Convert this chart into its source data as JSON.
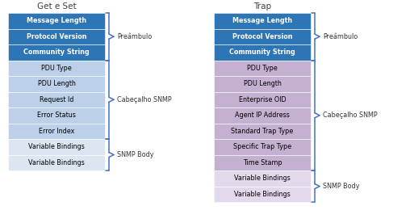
{
  "title_left": "Get e Set",
  "title_right": "Trap",
  "left_rows": [
    {
      "label": "Message Length",
      "color": "#2E75B6",
      "text_color": "#FFFFFF",
      "bold": true
    },
    {
      "label": "Protocol Version",
      "color": "#2E75B6",
      "text_color": "#FFFFFF",
      "bold": true
    },
    {
      "label": "Community String",
      "color": "#2E75B6",
      "text_color": "#FFFFFF",
      "bold": true
    },
    {
      "label": "PDU Type",
      "color": "#BDD0E9",
      "text_color": "#000000",
      "bold": false
    },
    {
      "label": "PDU Length",
      "color": "#BDD0E9",
      "text_color": "#000000",
      "bold": false
    },
    {
      "label": "Request Id",
      "color": "#BDD0E9",
      "text_color": "#000000",
      "bold": false
    },
    {
      "label": "Error Status",
      "color": "#BDD0E9",
      "text_color": "#000000",
      "bold": false
    },
    {
      "label": "Error Index",
      "color": "#BDD0E9",
      "text_color": "#000000",
      "bold": false
    },
    {
      "label": "Variable Bindings",
      "color": "#DCE6F1",
      "text_color": "#000000",
      "bold": false
    },
    {
      "label": "Variable Bindings",
      "color": "#DCE6F1",
      "text_color": "#000000",
      "bold": false
    }
  ],
  "right_rows": [
    {
      "label": "Message Length",
      "color": "#2E75B6",
      "text_color": "#FFFFFF",
      "bold": true
    },
    {
      "label": "Protocol Version",
      "color": "#2E75B6",
      "text_color": "#FFFFFF",
      "bold": true
    },
    {
      "label": "Community String",
      "color": "#2E75B6",
      "text_color": "#FFFFFF",
      "bold": true
    },
    {
      "label": "PDU Type",
      "color": "#C4B0D0",
      "text_color": "#000000",
      "bold": false
    },
    {
      "label": "PDU Length",
      "color": "#C4B0D0",
      "text_color": "#000000",
      "bold": false
    },
    {
      "label": "Enterprise OID",
      "color": "#C4B0D0",
      "text_color": "#000000",
      "bold": false
    },
    {
      "label": "Agent IP Address",
      "color": "#C4B0D0",
      "text_color": "#000000",
      "bold": false
    },
    {
      "label": "Standard Trap Type",
      "color": "#C4B0D0",
      "text_color": "#000000",
      "bold": false
    },
    {
      "label": "Specific Trap Type",
      "color": "#C4B0D0",
      "text_color": "#000000",
      "bold": false
    },
    {
      "label": "Time Stamp",
      "color": "#C4B0D0",
      "text_color": "#000000",
      "bold": false
    },
    {
      "label": "Variable Bindings",
      "color": "#E2D9EC",
      "text_color": "#000000",
      "bold": false
    },
    {
      "label": "Variable Bindings",
      "color": "#E2D9EC",
      "text_color": "#000000",
      "bold": false
    }
  ],
  "left_brackets": [
    {
      "rows": [
        0,
        2
      ],
      "label": "Preâmbulo"
    },
    {
      "rows": [
        3,
        7
      ],
      "label": "Cabeçalho SNMP"
    },
    {
      "rows": [
        8,
        9
      ],
      "label": "SNMP Body"
    }
  ],
  "right_brackets": [
    {
      "rows": [
        0,
        2
      ],
      "label": "Preâmbulo"
    },
    {
      "rows": [
        3,
        9
      ],
      "label": "Cabeçalho SNMP"
    },
    {
      "rows": [
        10,
        11
      ],
      "label": "SNMP Body"
    }
  ],
  "bracket_color": "#4472C4",
  "background_color": "#FFFFFF",
  "font_size": 5.8,
  "title_font_size": 7.5
}
